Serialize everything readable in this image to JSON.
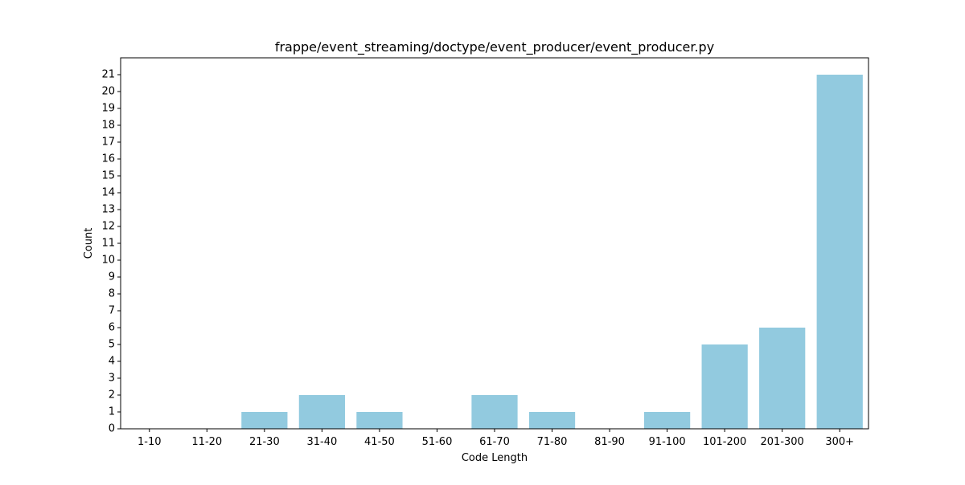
{
  "chart_data": {
    "type": "bar",
    "title": "frappe/event_streaming/doctype/event_producer/event_producer.py",
    "xlabel": "Code Length",
    "ylabel": "Count",
    "categories": [
      "1-10",
      "11-20",
      "21-30",
      "31-40",
      "41-50",
      "51-60",
      "61-70",
      "71-80",
      "81-90",
      "91-100",
      "101-200",
      "201-300",
      "300+"
    ],
    "values": [
      0,
      0,
      1,
      2,
      1,
      0,
      2,
      1,
      0,
      1,
      5,
      6,
      21
    ],
    "ylim": [
      0,
      22
    ],
    "yticks": [
      0,
      1,
      2,
      3,
      4,
      5,
      6,
      7,
      8,
      9,
      10,
      11,
      12,
      13,
      14,
      15,
      16,
      17,
      18,
      19,
      20,
      21
    ],
    "bar_color": "#92cadf",
    "grid": false
  }
}
